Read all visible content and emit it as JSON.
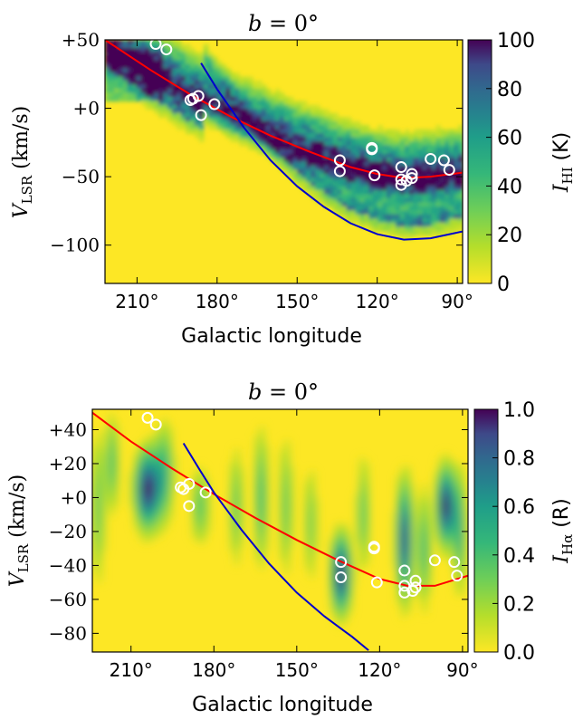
{
  "chart_data": [
    {
      "type": "heatmap",
      "title": "b = 0°",
      "title_var": "b",
      "title_rest": " = 0°",
      "xlabel": "Galactic longitude",
      "ylabel_main": "V",
      "ylabel_sub": "LSR",
      "ylabel_unit": " (km/s)",
      "xlim": [
        222,
        88
      ],
      "ylim": [
        -128,
        50
      ],
      "x_ticks": [
        210,
        180,
        150,
        120,
        90
      ],
      "x_tick_labels": [
        "210°",
        "180°",
        "150°",
        "120°",
        "90°"
      ],
      "y_ticks": [
        50,
        0,
        -50,
        -100
      ],
      "y_tick_labels": [
        "+50",
        "+0",
        "−50",
        "−100"
      ],
      "colorbar": {
        "label_main": "I",
        "label_sub": "HI",
        "label_unit": " (K)",
        "range": [
          0,
          100
        ],
        "ticks": [
          0,
          20,
          40,
          60,
          80,
          100
        ],
        "tick_labels": [
          "0",
          "20",
          "40",
          "60",
          "80",
          "100"
        ]
      },
      "colors": {
        "red_curve": "#ff0000",
        "blue_curve": "#0000cc",
        "markers": "#ffffff"
      },
      "red_curve": {
        "x": [
          222,
          205,
          190,
          175,
          160,
          145,
          130,
          120,
          110,
          100,
          88
        ],
        "y": [
          50,
          28,
          10,
          -6,
          -20,
          -32,
          -43,
          -48,
          -51,
          -50,
          -47
        ]
      },
      "blue_curve": {
        "x": [
          186,
          180,
          170,
          160,
          150,
          140,
          130,
          120,
          110,
          100,
          88
        ],
        "y": [
          33,
          14,
          -14,
          -38,
          -57,
          -72,
          -84,
          -92,
          -96,
          -95,
          -90
        ]
      },
      "markers": [
        {
          "l": 203,
          "v": 47
        },
        {
          "l": 199,
          "v": 43
        },
        {
          "l": 190,
          "v": 6
        },
        {
          "l": 189,
          "v": 7
        },
        {
          "l": 187,
          "v": 9
        },
        {
          "l": 186,
          "v": -5
        },
        {
          "l": 181,
          "v": 3
        },
        {
          "l": 134,
          "v": -38
        },
        {
          "l": 134,
          "v": -46
        },
        {
          "l": 122,
          "v": -29
        },
        {
          "l": 122,
          "v": -30
        },
        {
          "l": 121,
          "v": -49
        },
        {
          "l": 111,
          "v": -43
        },
        {
          "l": 111,
          "v": -52
        },
        {
          "l": 111,
          "v": -56
        },
        {
          "l": 109,
          "v": -53
        },
        {
          "l": 107,
          "v": -48
        },
        {
          "l": 107,
          "v": -51
        },
        {
          "l": 100,
          "v": -37
        },
        {
          "l": 95,
          "v": -38
        },
        {
          "l": 93,
          "v": -45
        }
      ]
    },
    {
      "type": "heatmap",
      "title": "b = 0°",
      "title_var": "b",
      "title_rest": " = 0°",
      "xlabel": "Galactic longitude",
      "ylabel_main": "V",
      "ylabel_sub": "LSR",
      "ylabel_unit": " (km/s)",
      "xlim": [
        224,
        88
      ],
      "ylim": [
        -91,
        52
      ],
      "x_ticks": [
        210,
        180,
        150,
        120,
        90
      ],
      "x_tick_labels": [
        "210°",
        "180°",
        "150°",
        "120°",
        "90°"
      ],
      "y_ticks": [
        40,
        20,
        0,
        -20,
        -40,
        -60,
        -80
      ],
      "y_tick_labels": [
        "+40",
        "+20",
        "+0",
        "−20",
        "−40",
        "−60",
        "−80"
      ],
      "colorbar": {
        "label_main": "I",
        "label_sub": "Hα",
        "label_unit": " (R)",
        "range": [
          0,
          1
        ],
        "ticks": [
          0,
          0.2,
          0.4,
          0.6,
          0.8,
          1.0
        ],
        "tick_labels": [
          "0.0",
          "0.2",
          "0.4",
          "0.6",
          "0.8",
          "1.0"
        ]
      },
      "colors": {
        "red_curve": "#ff0000",
        "blue_curve": "#0000cc",
        "markers": "#ffffff"
      },
      "red_curve": {
        "x": [
          224,
          210,
          195,
          180,
          165,
          150,
          135,
          120,
          110,
          100,
          88
        ],
        "y": [
          50,
          33,
          17,
          2,
          -12,
          -25,
          -37,
          -48,
          -52,
          -52,
          -46
        ]
      },
      "blue_curve": {
        "x": [
          191,
          185,
          180,
          170,
          160,
          150,
          140,
          130,
          124
        ],
        "y": [
          32,
          16,
          3,
          -19,
          -39,
          -56,
          -70,
          -82,
          -90
        ]
      },
      "markers": [
        {
          "l": 204,
          "v": 47
        },
        {
          "l": 201,
          "v": 43
        },
        {
          "l": 192,
          "v": 6
        },
        {
          "l": 191,
          "v": 5
        },
        {
          "l": 189,
          "v": 8
        },
        {
          "l": 189,
          "v": -5
        },
        {
          "l": 183,
          "v": 3
        },
        {
          "l": 134,
          "v": -38
        },
        {
          "l": 134,
          "v": -47
        },
        {
          "l": 122,
          "v": -29
        },
        {
          "l": 122,
          "v": -30
        },
        {
          "l": 121,
          "v": -50
        },
        {
          "l": 111,
          "v": -43
        },
        {
          "l": 111,
          "v": -52
        },
        {
          "l": 111,
          "v": -56
        },
        {
          "l": 108,
          "v": -55
        },
        {
          "l": 107,
          "v": -49
        },
        {
          "l": 107,
          "v": -53
        },
        {
          "l": 100,
          "v": -37
        },
        {
          "l": 93,
          "v": -38
        },
        {
          "l": 92,
          "v": -46
        }
      ]
    }
  ]
}
